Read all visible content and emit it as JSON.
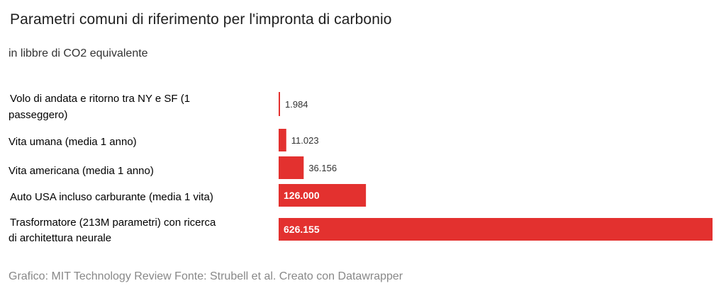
{
  "chart_data": {
    "type": "bar",
    "orientation": "horizontal",
    "title": "Parametri comuni di riferimento per l'impronta di carbonio",
    "subtitle": "in libbre di CO2 equivalente",
    "categories": [
      [
        "Volo di andata e ritorno tra NY e SF (1",
        "passeggero)"
      ],
      [
        "Vita umana (media 1 anno)"
      ],
      [
        "Vita americana (media 1 anno)"
      ],
      [
        "Auto USA incluso carburante (media 1 vita)"
      ],
      [
        "Trasformatore (213M parametri) con ricerca",
        "di architettura neurale"
      ]
    ],
    "values": [
      1984,
      11023,
      36156,
      126000,
      626155
    ],
    "value_labels": [
      "1.984",
      "11.023",
      "36.156",
      "126.000",
      "626.155"
    ],
    "bar_color": "#e3312f",
    "xlim": [
      0,
      626155
    ],
    "grid": false,
    "footer": "Grafico: MIT Technology Review Fonte: Strubell et al. Creato con Datawrapper"
  }
}
